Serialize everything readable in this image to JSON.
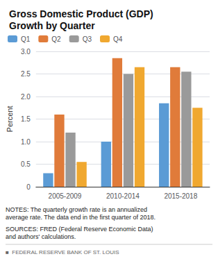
{
  "chart_data": {
    "type": "bar",
    "title": "Gross Domestic Product (GDP)\nGrowth by Quarter",
    "y_label": "Percent",
    "categories": [
      "2005-2009",
      "2010-2014",
      "2015-2018"
    ],
    "series": [
      {
        "name": "Q1",
        "color": "#5b9bd5",
        "values": [
          0.3,
          1.0,
          1.85
        ]
      },
      {
        "name": "Q2",
        "color": "#e07b3a",
        "values": [
          1.6,
          2.85,
          2.65
        ]
      },
      {
        "name": "Q3",
        "color": "#9a9a9a",
        "values": [
          1.2,
          2.5,
          2.55
        ]
      },
      {
        "name": "Q4",
        "color": "#f0a830",
        "values": [
          0.55,
          2.65,
          1.75
        ]
      }
    ],
    "ylim": [
      0,
      3.0
    ],
    "yticks": [
      0,
      0.5,
      {
        "value": 1.0,
        "label": "1.0"
      },
      {
        "value": 1.5,
        "label": "1.5"
      },
      {
        "value": 2.0,
        "label": "2.0"
      },
      {
        "value": 2.5,
        "label": "2.5"
      },
      {
        "value": 3.0,
        "label": "3.0"
      }
    ],
    "grid": true,
    "legend": "upper left",
    "annotations": [
      "NOTES: The quarterly growth rate is an annualized\naverage rate. The data end in the first quarter of 2018.",
      "SOURCES: FRED (Federal Reserve Economic Data)\nand authors' calculations.",
      "■  FEDERAL RESERVE BANK OF ST. LOUIS"
    ]
  }
}
